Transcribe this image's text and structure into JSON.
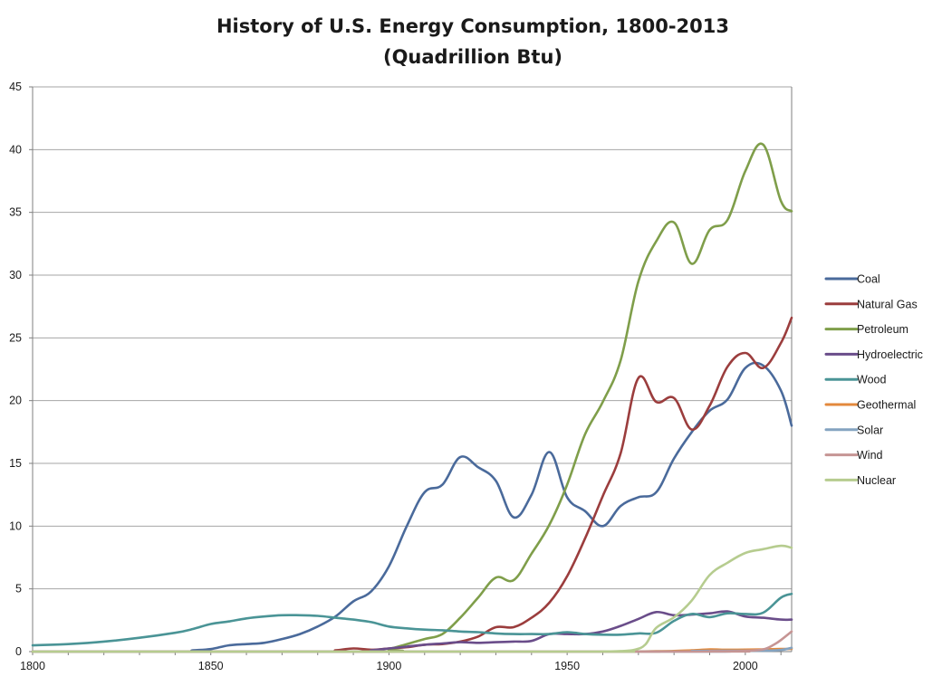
{
  "chart_data": {
    "type": "line",
    "title": "History of U.S. Energy Consumption, 1800-2013",
    "subtitle": "(Quadrillion Btu)",
    "xlabel": "",
    "ylabel": "",
    "xlim": [
      1800,
      2013
    ],
    "ylim": [
      0,
      45
    ],
    "x_ticks": [
      "1800",
      "1850",
      "1900",
      "1950",
      "2000"
    ],
    "y_ticks": [
      "0",
      "5",
      "10",
      "15",
      "20",
      "25",
      "30",
      "35",
      "40",
      "45"
    ],
    "grid": "horizontal",
    "legend_position": "right",
    "series": [
      {
        "name": "Coal",
        "color": "#4a6a9b",
        "points": [
          [
            1800,
            0
          ],
          [
            1840,
            0
          ],
          [
            1845,
            0.1
          ],
          [
            1850,
            0.2
          ],
          [
            1855,
            0.5
          ],
          [
            1860,
            0.6
          ],
          [
            1865,
            0.7
          ],
          [
            1870,
            1.0
          ],
          [
            1875,
            1.4
          ],
          [
            1880,
            2.0
          ],
          [
            1885,
            2.8
          ],
          [
            1890,
            4.0
          ],
          [
            1895,
            4.8
          ],
          [
            1900,
            6.8
          ],
          [
            1905,
            10.0
          ],
          [
            1910,
            12.7
          ],
          [
            1915,
            13.3
          ],
          [
            1920,
            15.5
          ],
          [
            1925,
            14.7
          ],
          [
            1930,
            13.6
          ],
          [
            1935,
            10.7
          ],
          [
            1940,
            12.5
          ],
          [
            1945,
            15.9
          ],
          [
            1950,
            12.3
          ],
          [
            1955,
            11.2
          ],
          [
            1960,
            10.0
          ],
          [
            1965,
            11.6
          ],
          [
            1970,
            12.3
          ],
          [
            1975,
            12.7
          ],
          [
            1980,
            15.4
          ],
          [
            1985,
            17.5
          ],
          [
            1990,
            19.2
          ],
          [
            1995,
            20.1
          ],
          [
            2000,
            22.6
          ],
          [
            2005,
            22.8
          ],
          [
            2010,
            20.8
          ],
          [
            2013,
            18.0
          ]
        ]
      },
      {
        "name": "Natural Gas",
        "color": "#9b3d3d",
        "points": [
          [
            1800,
            0
          ],
          [
            1880,
            0
          ],
          [
            1885,
            0.1
          ],
          [
            1890,
            0.25
          ],
          [
            1895,
            0.15
          ],
          [
            1900,
            0.25
          ],
          [
            1905,
            0.35
          ],
          [
            1910,
            0.55
          ],
          [
            1915,
            0.6
          ],
          [
            1920,
            0.8
          ],
          [
            1925,
            1.2
          ],
          [
            1930,
            1.95
          ],
          [
            1935,
            1.95
          ],
          [
            1940,
            2.7
          ],
          [
            1945,
            3.9
          ],
          [
            1950,
            6.0
          ],
          [
            1955,
            9.0
          ],
          [
            1960,
            12.4
          ],
          [
            1965,
            15.8
          ],
          [
            1970,
            21.8
          ],
          [
            1975,
            19.9
          ],
          [
            1980,
            20.2
          ],
          [
            1985,
            17.7
          ],
          [
            1990,
            19.6
          ],
          [
            1995,
            22.7
          ],
          [
            2000,
            23.8
          ],
          [
            2005,
            22.6
          ],
          [
            2010,
            24.6
          ],
          [
            2013,
            26.6
          ]
        ]
      },
      {
        "name": "Petroleum",
        "color": "#7f9e4a",
        "points": [
          [
            1800,
            0
          ],
          [
            1895,
            0
          ],
          [
            1900,
            0.2
          ],
          [
            1905,
            0.6
          ],
          [
            1910,
            1.0
          ],
          [
            1915,
            1.4
          ],
          [
            1920,
            2.7
          ],
          [
            1925,
            4.3
          ],
          [
            1930,
            5.9
          ],
          [
            1935,
            5.7
          ],
          [
            1940,
            7.8
          ],
          [
            1945,
            10.1
          ],
          [
            1950,
            13.3
          ],
          [
            1955,
            17.3
          ],
          [
            1960,
            19.9
          ],
          [
            1965,
            23.2
          ],
          [
            1970,
            29.5
          ],
          [
            1975,
            32.7
          ],
          [
            1980,
            34.2
          ],
          [
            1985,
            30.9
          ],
          [
            1990,
            33.6
          ],
          [
            1995,
            34.4
          ],
          [
            2000,
            38.3
          ],
          [
            2005,
            40.4
          ],
          [
            2010,
            35.9
          ],
          [
            2013,
            35.1
          ]
        ]
      },
      {
        "name": "Hydroelectric",
        "color": "#6a4d8a",
        "points": [
          [
            1800,
            0
          ],
          [
            1890,
            0
          ],
          [
            1895,
            0.1
          ],
          [
            1900,
            0.25
          ],
          [
            1905,
            0.4
          ],
          [
            1910,
            0.55
          ],
          [
            1915,
            0.65
          ],
          [
            1920,
            0.75
          ],
          [
            1925,
            0.7
          ],
          [
            1930,
            0.75
          ],
          [
            1935,
            0.8
          ],
          [
            1940,
            0.85
          ],
          [
            1945,
            1.4
          ],
          [
            1950,
            1.4
          ],
          [
            1955,
            1.4
          ],
          [
            1960,
            1.6
          ],
          [
            1965,
            2.05
          ],
          [
            1970,
            2.6
          ],
          [
            1975,
            3.15
          ],
          [
            1980,
            2.9
          ],
          [
            1985,
            2.95
          ],
          [
            1990,
            3.05
          ],
          [
            1995,
            3.2
          ],
          [
            2000,
            2.8
          ],
          [
            2005,
            2.7
          ],
          [
            2010,
            2.55
          ],
          [
            2013,
            2.55
          ]
        ]
      },
      {
        "name": "Wood",
        "color": "#4a9496",
        "points": [
          [
            1800,
            0.5
          ],
          [
            1810,
            0.6
          ],
          [
            1820,
            0.8
          ],
          [
            1830,
            1.1
          ],
          [
            1840,
            1.5
          ],
          [
            1845,
            1.8
          ],
          [
            1850,
            2.2
          ],
          [
            1855,
            2.4
          ],
          [
            1860,
            2.65
          ],
          [
            1865,
            2.8
          ],
          [
            1870,
            2.9
          ],
          [
            1875,
            2.9
          ],
          [
            1880,
            2.85
          ],
          [
            1885,
            2.7
          ],
          [
            1890,
            2.55
          ],
          [
            1895,
            2.35
          ],
          [
            1900,
            2.0
          ],
          [
            1905,
            1.85
          ],
          [
            1910,
            1.75
          ],
          [
            1915,
            1.7
          ],
          [
            1920,
            1.6
          ],
          [
            1925,
            1.55
          ],
          [
            1930,
            1.45
          ],
          [
            1935,
            1.4
          ],
          [
            1940,
            1.4
          ],
          [
            1945,
            1.4
          ],
          [
            1950,
            1.55
          ],
          [
            1955,
            1.4
          ],
          [
            1960,
            1.35
          ],
          [
            1965,
            1.35
          ],
          [
            1970,
            1.45
          ],
          [
            1975,
            1.5
          ],
          [
            1980,
            2.45
          ],
          [
            1985,
            3.0
          ],
          [
            1990,
            2.75
          ],
          [
            1995,
            3.05
          ],
          [
            2000,
            3.0
          ],
          [
            2005,
            3.1
          ],
          [
            2010,
            4.3
          ],
          [
            2013,
            4.6
          ]
        ]
      },
      {
        "name": "Geothermal",
        "color": "#e3893c",
        "points": [
          [
            1800,
            0
          ],
          [
            1960,
            0
          ],
          [
            1970,
            0.01
          ],
          [
            1975,
            0.03
          ],
          [
            1980,
            0.05
          ],
          [
            1985,
            0.1
          ],
          [
            1990,
            0.17
          ],
          [
            1995,
            0.15
          ],
          [
            2000,
            0.16
          ],
          [
            2005,
            0.18
          ],
          [
            2010,
            0.21
          ],
          [
            2013,
            0.22
          ]
        ]
      },
      {
        "name": "Solar",
        "color": "#84a3c0",
        "points": [
          [
            1800,
            0
          ],
          [
            1980,
            0
          ],
          [
            1985,
            0.05
          ],
          [
            1990,
            0.06
          ],
          [
            1995,
            0.07
          ],
          [
            2000,
            0.07
          ],
          [
            2005,
            0.07
          ],
          [
            2010,
            0.13
          ],
          [
            2013,
            0.3
          ]
        ]
      },
      {
        "name": "Wind",
        "color": "#c69594",
        "points": [
          [
            1800,
            0
          ],
          [
            1985,
            0
          ],
          [
            1990,
            0.03
          ],
          [
            1995,
            0.03
          ],
          [
            2000,
            0.06
          ],
          [
            2005,
            0.18
          ],
          [
            2008,
            0.55
          ],
          [
            2010,
            0.92
          ],
          [
            2013,
            1.6
          ]
        ]
      },
      {
        "name": "Nuclear",
        "color": "#b6cc8f",
        "points": [
          [
            1800,
            0
          ],
          [
            1955,
            0
          ],
          [
            1960,
            0.01
          ],
          [
            1965,
            0.04
          ],
          [
            1969,
            0.15
          ],
          [
            1972,
            0.58
          ],
          [
            1975,
            1.9
          ],
          [
            1980,
            2.74
          ],
          [
            1985,
            4.08
          ],
          [
            1990,
            6.1
          ],
          [
            1995,
            7.08
          ],
          [
            2000,
            7.86
          ],
          [
            2005,
            8.16
          ],
          [
            2010,
            8.43
          ],
          [
            2013,
            8.27
          ]
        ]
      }
    ]
  }
}
